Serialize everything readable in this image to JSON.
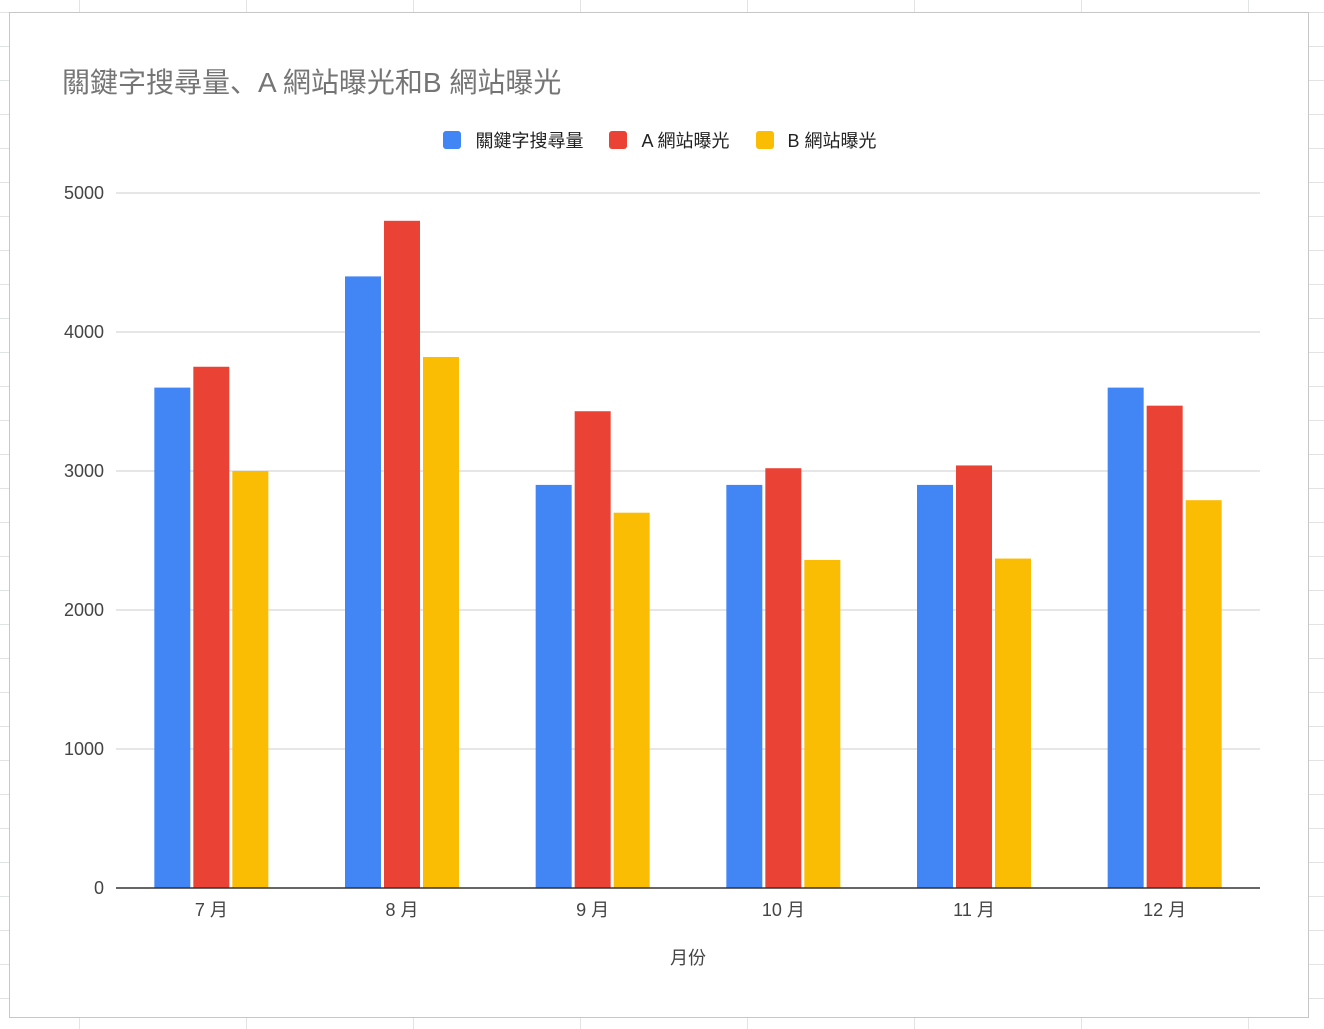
{
  "chart_data": {
    "type": "bar",
    "title": "關鍵字搜尋量、A 網站曝光和B 網站曝光",
    "xlabel": "月份",
    "ylabel": "",
    "categories": [
      "7 月",
      "8 月",
      "9 月",
      "10 月",
      "11 月",
      "12 月"
    ],
    "series": [
      {
        "name": "關鍵字搜尋量",
        "color": "#4285f4",
        "values": [
          3600,
          4400,
          2900,
          2900,
          2900,
          3600
        ]
      },
      {
        "name": "A 網站曝光",
        "color": "#ea4335",
        "values": [
          3750,
          4800,
          3430,
          3020,
          3040,
          3470
        ]
      },
      {
        "name": "B 網站曝光",
        "color": "#fbbc04",
        "values": [
          3000,
          3820,
          2700,
          2360,
          2370,
          2790
        ]
      }
    ],
    "ylim": [
      0,
      5000
    ],
    "yticks": [
      "0",
      "1000",
      "2000",
      "3000",
      "4000",
      "5000"
    ],
    "grid": true,
    "legend_position": "top"
  }
}
